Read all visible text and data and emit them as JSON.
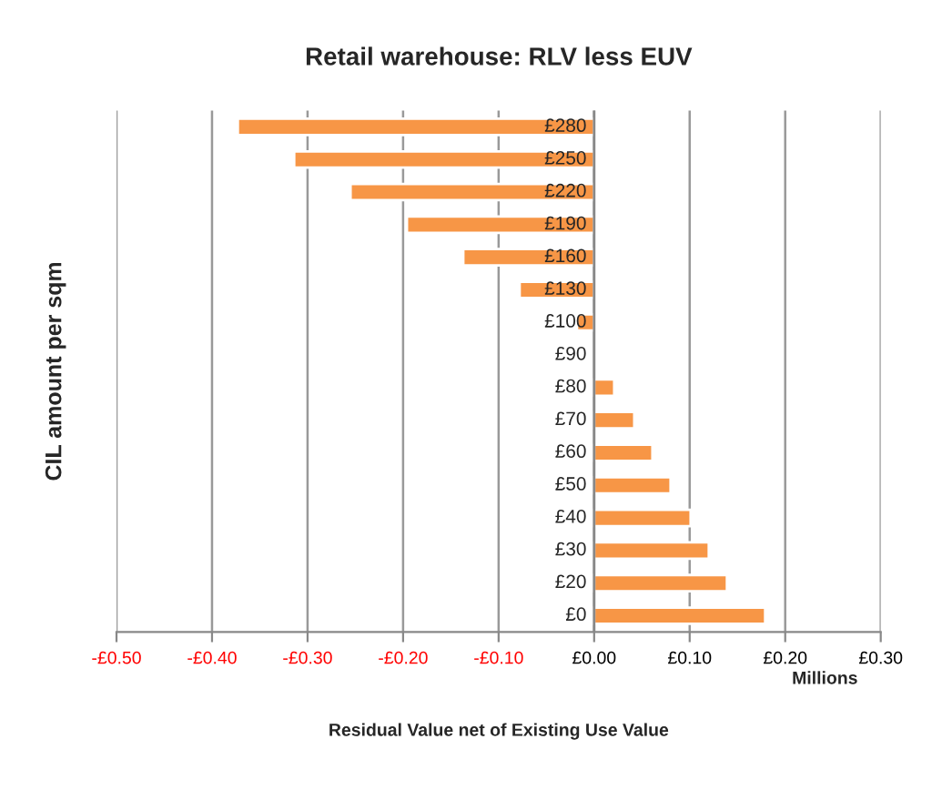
{
  "chart_data": {
    "type": "bar",
    "orientation": "horizontal",
    "title": "Retail warehouse: RLV less EUV",
    "xlabel": "Residual Value net of Existing Use Value",
    "ylabel": "CIL amount per sqm",
    "annotations": [
      "Millions"
    ],
    "categories": [
      "£280",
      "£250",
      "£220",
      "£190",
      "£160",
      "£130",
      "£100",
      "£90",
      "£80",
      "£70",
      "£60",
      "£50",
      "£40",
      "£30",
      "£20",
      "£0"
    ],
    "values": [
      -0.373,
      -0.314,
      -0.255,
      -0.196,
      -0.137,
      -0.078,
      -0.018,
      null,
      0.021,
      0.042,
      0.061,
      0.08,
      0.101,
      0.12,
      0.139,
      0.179
    ],
    "color": "#f79646",
    "xlim": [
      -0.5,
      0.3
    ],
    "xticks": [
      {
        "value": -0.5,
        "label": "-£0.50"
      },
      {
        "value": -0.4,
        "label": "-£0.40"
      },
      {
        "value": -0.3,
        "label": "-£0.30"
      },
      {
        "value": -0.2,
        "label": "-£0.20"
      },
      {
        "value": -0.1,
        "label": "-£0.10"
      },
      {
        "value": 0,
        "label": "£0.00"
      },
      {
        "value": 0.1,
        "label": "£0.10"
      },
      {
        "value": 0.2,
        "label": "£0.20"
      },
      {
        "value": 0.3,
        "label": "£0.30"
      }
    ],
    "grid": "x",
    "legend": false
  }
}
